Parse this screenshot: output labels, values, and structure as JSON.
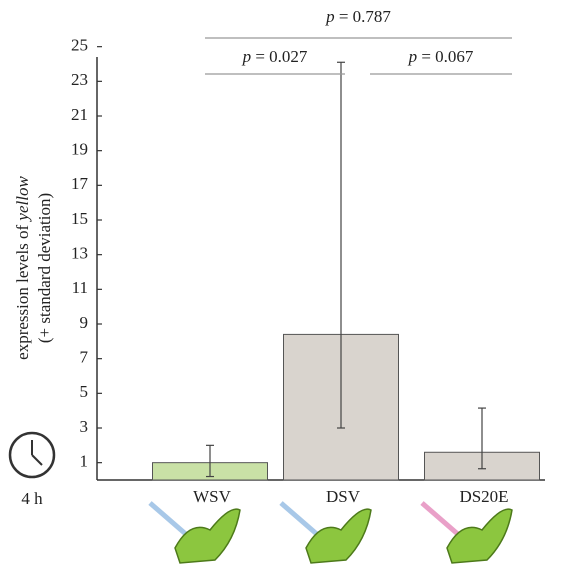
{
  "chart_data": {
    "type": "bar",
    "ylabel": {
      "text": "expression levels of",
      "italic": "yellow",
      "line2": "(+ standard deviation)"
    },
    "categories": [
      "WSV",
      "DSV",
      "DS20E"
    ],
    "values": [
      1.0,
      8.4,
      1.6
    ],
    "error_low": [
      0.2,
      3.0,
      0.65
    ],
    "error_high": [
      2.0,
      24.1,
      4.15
    ],
    "colors": [
      "#c9e1a6",
      "#d9d4ce",
      "#d9d4ce"
    ],
    "ylim": [
      0,
      25
    ],
    "yticks": [
      1,
      3,
      5,
      7,
      9,
      11,
      13,
      15,
      17,
      19,
      21,
      23,
      25
    ],
    "annotations": [
      {
        "symbol": "p",
        "text": "= 0.787"
      },
      {
        "symbol": "p",
        "text": "= 0.027"
      },
      {
        "symbol": "p",
        "text": "= 0.067"
      }
    ],
    "time_label": "4 h"
  }
}
